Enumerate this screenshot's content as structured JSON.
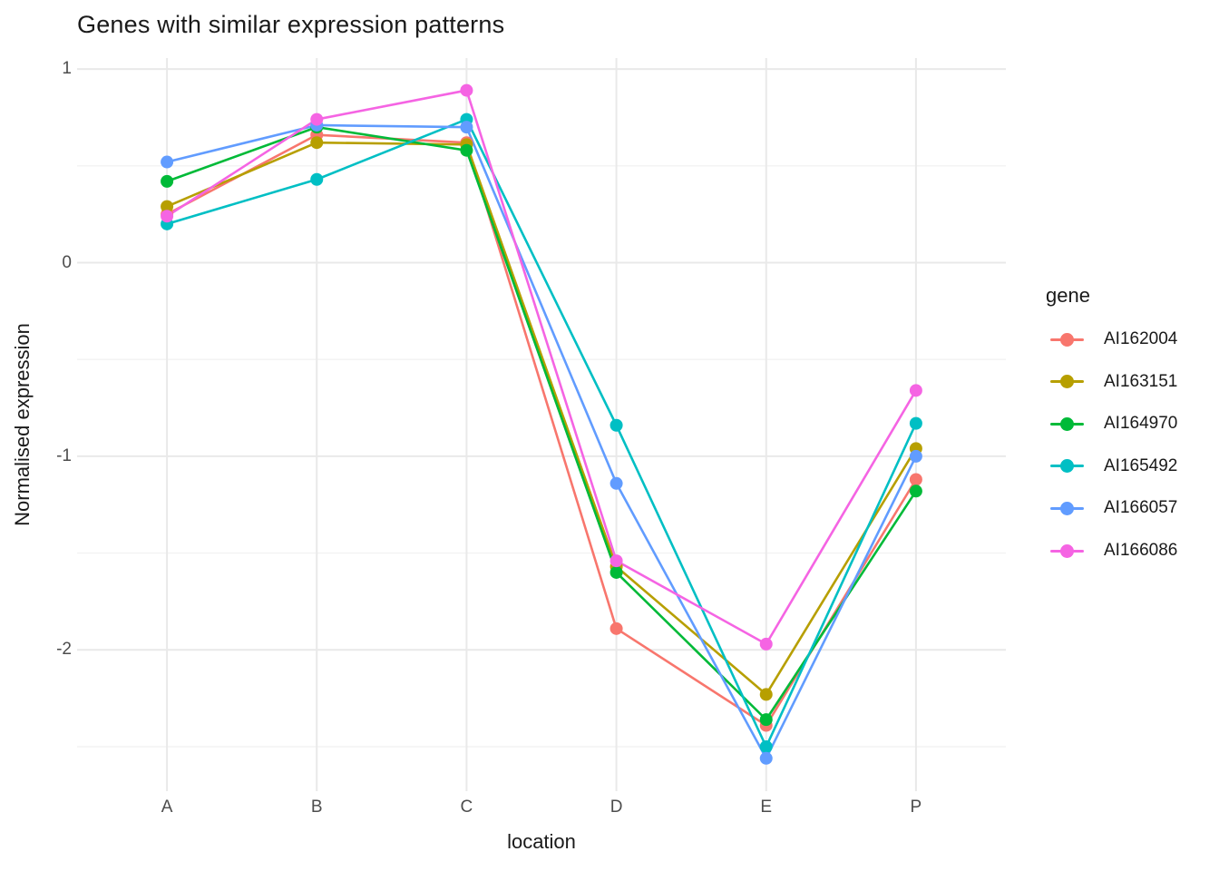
{
  "title": "Genes with similar expression patterns",
  "colors": {
    "background": "#ffffff",
    "grid_major": "#e9e9e9",
    "grid_minor": "#f3f3f3",
    "tick_label": "#4d4d4d",
    "text": "#1a1a1a"
  },
  "chart_data": {
    "type": "line",
    "title": "Genes with similar expression patterns",
    "xlabel": "location",
    "ylabel": "Normalised expression",
    "legend_title": "gene",
    "legend_position": "right",
    "x": [
      "A",
      "B",
      "C",
      "D",
      "E",
      "P"
    ],
    "yticks": [
      1,
      0,
      -1,
      -2
    ],
    "yminor": [
      0.5,
      -0.5,
      -1.5,
      -2.5
    ],
    "ylim": [
      -2.73,
      1.06
    ],
    "grid": "on",
    "series": [
      {
        "name": "AI162004",
        "color": "#F8766D",
        "values": [
          0.25,
          0.66,
          0.62,
          -1.89,
          -2.39,
          -1.12
        ]
      },
      {
        "name": "AI163151",
        "color": "#B79F00",
        "values": [
          0.29,
          0.62,
          0.61,
          -1.57,
          -2.23,
          -0.96
        ]
      },
      {
        "name": "AI164970",
        "color": "#00BA38",
        "values": [
          0.42,
          0.7,
          0.58,
          -1.6,
          -2.36,
          -1.18
        ]
      },
      {
        "name": "AI165492",
        "color": "#00BFC4",
        "values": [
          0.2,
          0.43,
          0.74,
          -0.84,
          -2.5,
          -0.83
        ]
      },
      {
        "name": "AI166057",
        "color": "#619CFF",
        "values": [
          0.52,
          0.71,
          0.7,
          -1.14,
          -2.56,
          -1.0
        ]
      },
      {
        "name": "AI166086",
        "color": "#F564E3",
        "values": [
          0.24,
          0.74,
          0.89,
          -1.54,
          -1.97,
          -0.66
        ]
      }
    ]
  }
}
